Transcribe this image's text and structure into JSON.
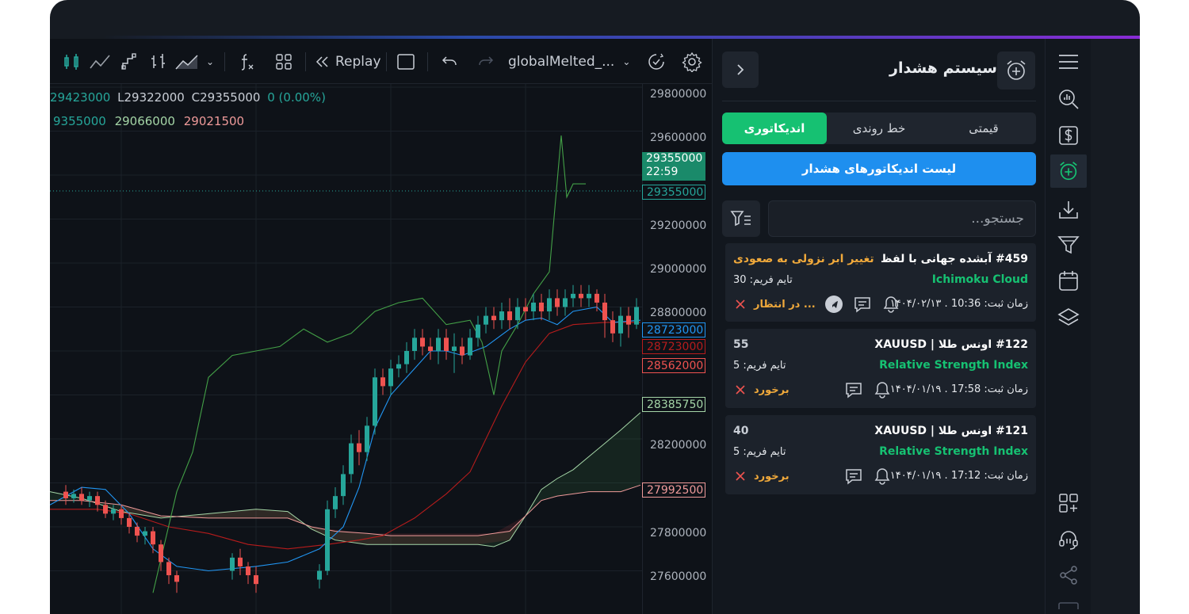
{
  "toolbar": {
    "replay_label": "Replay",
    "layout_name": "globalMelted_..."
  },
  "chart": {
    "ohlc_line1": {
      "open_tail": "29423000",
      "low_label": "L29322000",
      "close_label": "C29355000",
      "change": "0 (0.00%)"
    },
    "ohlc_line2": {
      "v1": "9355000",
      "v2": "29066000",
      "v3": "29021500"
    },
    "price_axis": [
      "29800000",
      "29600000",
      "29200000",
      "29000000",
      "28800000",
      "28200000",
      "27800000",
      "27600000"
    ],
    "labels": {
      "last_price": "29355000",
      "countdown": "22:59",
      "last_price_line": "29355000",
      "blue_line": "28723000",
      "red_line": "28723000",
      "red_line2": "28562000",
      "span_a": "28385750",
      "span_b": "27992500"
    },
    "colors": {
      "up": "#26a69a",
      "down": "#ef5350",
      "tenkan": "#2196f3",
      "kijun": "#b71c1c",
      "chikou": "#43a047",
      "span_a": "#a5d6a7",
      "span_b": "#ef9a9a"
    }
  },
  "panel": {
    "title": "سیستم هشدار",
    "tabs": [
      "قیمتی",
      "خط روندی",
      "اندیکاتوری"
    ],
    "active_tab": "اندیکاتوری",
    "list_button": "لیست اندیکاتورهای هشدار",
    "search_placeholder": "جستجو...",
    "cards": [
      {
        "title": "#459 آبشده جهانی با لفظ",
        "status": "تغییر ابر نزولی به صعودی",
        "status_color": "#f0a93b",
        "indicator": "Ichimoku Cloud",
        "timeframe": "تایم فریم: 30",
        "time": "زمان ثبت: 10:36 . ۱۴۰۴/۰۲/۱۳",
        "state": "در انتظار ...",
        "state_color": "#f0a93b"
      },
      {
        "title": "#122 اونس طلا | XAUUSD",
        "status": "55",
        "status_color": "#c9ced6",
        "indicator": "Relative Strength Index",
        "timeframe": "تایم فریم: 5",
        "time": "زمان ثبت: 17:58 . ۱۴۰۴/۰۱/۱۹",
        "state": "برخورد",
        "state_color": "#f0a93b"
      },
      {
        "title": "#121 اونس طلا | XAUUSD",
        "status": "40",
        "status_color": "#c9ced6",
        "indicator": "Relative Strength Index",
        "timeframe": "تایم فریم: 5",
        "time": "زمان ثبت: 17:12 . ۱۴۰۴/۰۱/۱۹",
        "state": "برخورد",
        "state_color": "#f0a93b"
      }
    ]
  },
  "nav": {
    "icons": [
      "menu-icon",
      "analysis-icon",
      "dollar-icon",
      "alarm-add-icon",
      "download-icon",
      "filter-icon",
      "calendar-icon",
      "layers-icon",
      "add-widget-icon",
      "support-icon",
      "share-icon"
    ],
    "active": "alarm-add-icon"
  }
}
